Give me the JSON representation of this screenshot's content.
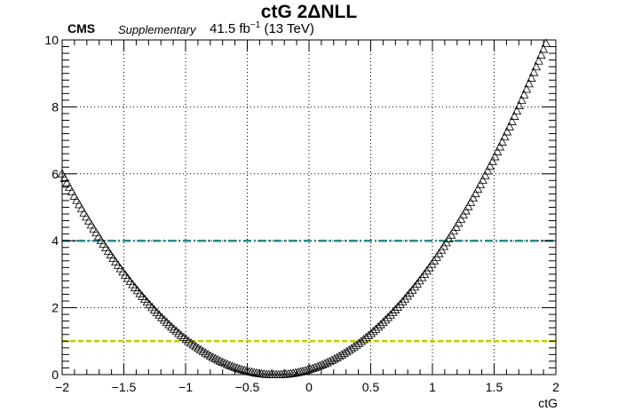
{
  "header": {
    "title": "ctG 2ΔNLL",
    "experiment": "CMS",
    "label": "Supplementary",
    "lumi_value": "41.5 fb",
    "lumi_exp": "−1",
    "energy": "(13 TeV)"
  },
  "chart_data": {
    "type": "scatter",
    "title": "ctG 2ΔNLL",
    "xlabel": "ctG",
    "ylabel": "",
    "xlim": [
      -2,
      2
    ],
    "ylim": [
      0,
      10
    ],
    "xticks": [
      -2,
      -1.5,
      -1,
      -0.5,
      0,
      0.5,
      1,
      1.5,
      2
    ],
    "xtick_labels": [
      "−2",
      "−1.5",
      "−1",
      "−0.5",
      "0",
      "0.5",
      "1",
      "1.5",
      "2"
    ],
    "yticks": [
      0,
      2,
      4,
      6,
      8,
      10
    ],
    "ytick_labels": [
      "0",
      "2",
      "4",
      "6",
      "8",
      "10"
    ],
    "grid": true,
    "marker": "open-triangle",
    "scan": {
      "x_min": -2.0,
      "x_max": 1.92,
      "n_points": 200,
      "best_fit_x": -0.27,
      "y_at_x_min": 6.0,
      "y_at_x_max": 9.9
    },
    "reference_lines": [
      {
        "y": 4,
        "style": "dash-dot",
        "color": "#2b8a8a"
      },
      {
        "y": 1,
        "style": "dashed",
        "color": "#c8c800"
      }
    ],
    "colors": {
      "marker": "#000000",
      "grid": "#000000",
      "axis": "#000000"
    }
  }
}
